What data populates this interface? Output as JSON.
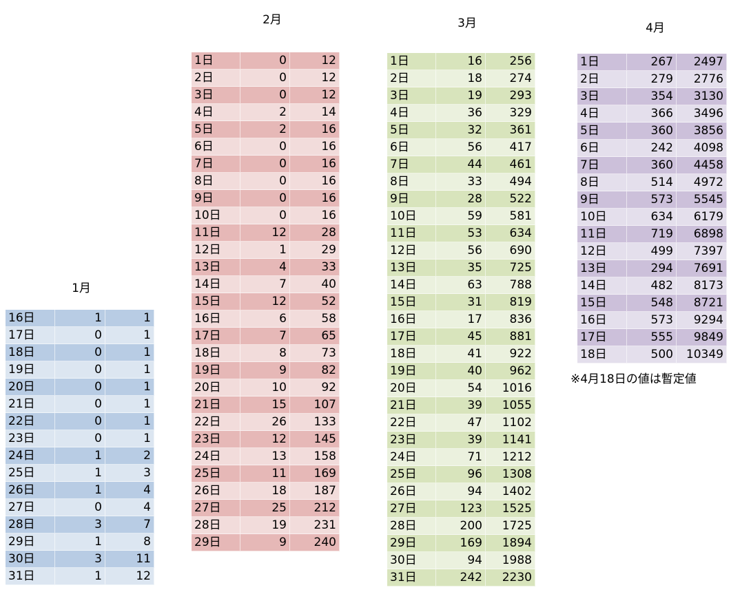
{
  "tables": [
    {
      "title": "1月",
      "rows": [
        [
          "16日",
          1,
          1
        ],
        [
          "17日",
          0,
          1
        ],
        [
          "18日",
          0,
          1
        ],
        [
          "19日",
          0,
          1
        ],
        [
          "20日",
          0,
          1
        ],
        [
          "21日",
          0,
          1
        ],
        [
          "22日",
          0,
          1
        ],
        [
          "23日",
          0,
          1
        ],
        [
          "24日",
          1,
          2
        ],
        [
          "25日",
          1,
          3
        ],
        [
          "26日",
          1,
          4
        ],
        [
          "27日",
          0,
          4
        ],
        [
          "28日",
          3,
          7
        ],
        [
          "29日",
          1,
          8
        ],
        [
          "30日",
          3,
          11
        ],
        [
          "31日",
          1,
          12
        ]
      ]
    },
    {
      "title": "2月",
      "rows": [
        [
          "1日",
          0,
          12
        ],
        [
          "2日",
          0,
          12
        ],
        [
          "3日",
          0,
          12
        ],
        [
          "4日",
          2,
          14
        ],
        [
          "5日",
          2,
          16
        ],
        [
          "6日",
          0,
          16
        ],
        [
          "7日",
          0,
          16
        ],
        [
          "8日",
          0,
          16
        ],
        [
          "9日",
          0,
          16
        ],
        [
          "10日",
          0,
          16
        ],
        [
          "11日",
          12,
          28
        ],
        [
          "12日",
          1,
          29
        ],
        [
          "13日",
          4,
          33
        ],
        [
          "14日",
          7,
          40
        ],
        [
          "15日",
          12,
          52
        ],
        [
          "16日",
          6,
          58
        ],
        [
          "17日",
          7,
          65
        ],
        [
          "18日",
          8,
          73
        ],
        [
          "19日",
          9,
          82
        ],
        [
          "20日",
          10,
          92
        ],
        [
          "21日",
          15,
          107
        ],
        [
          "22日",
          26,
          133
        ],
        [
          "23日",
          12,
          145
        ],
        [
          "24日",
          13,
          158
        ],
        [
          "25日",
          11,
          169
        ],
        [
          "26日",
          18,
          187
        ],
        [
          "27日",
          25,
          212
        ],
        [
          "28日",
          19,
          231
        ],
        [
          "29日",
          9,
          240
        ]
      ]
    },
    {
      "title": "3月",
      "rows": [
        [
          "1日",
          16,
          256
        ],
        [
          "2日",
          18,
          274
        ],
        [
          "3日",
          19,
          293
        ],
        [
          "4日",
          36,
          329
        ],
        [
          "5日",
          32,
          361
        ],
        [
          "6日",
          56,
          417
        ],
        [
          "7日",
          44,
          461
        ],
        [
          "8日",
          33,
          494
        ],
        [
          "9日",
          28,
          522
        ],
        [
          "10日",
          59,
          581
        ],
        [
          "11日",
          53,
          634
        ],
        [
          "12日",
          56,
          690
        ],
        [
          "13日",
          35,
          725
        ],
        [
          "14日",
          63,
          788
        ],
        [
          "15日",
          31,
          819
        ],
        [
          "16日",
          17,
          836
        ],
        [
          "17日",
          45,
          881
        ],
        [
          "18日",
          41,
          922
        ],
        [
          "19日",
          40,
          962
        ],
        [
          "20日",
          54,
          1016
        ],
        [
          "21日",
          39,
          1055
        ],
        [
          "22日",
          47,
          1102
        ],
        [
          "23日",
          39,
          1141
        ],
        [
          "24日",
          71,
          1212
        ],
        [
          "25日",
          96,
          1308
        ],
        [
          "26日",
          94,
          1402
        ],
        [
          "27日",
          123,
          1525
        ],
        [
          "28日",
          200,
          1725
        ],
        [
          "29日",
          169,
          1894
        ],
        [
          "30日",
          94,
          1988
        ],
        [
          "31日",
          242,
          2230
        ]
      ]
    },
    {
      "title": "4月",
      "rows": [
        [
          "1日",
          267,
          2497
        ],
        [
          "2日",
          279,
          2776
        ],
        [
          "3日",
          354,
          3130
        ],
        [
          "4日",
          366,
          3496
        ],
        [
          "5日",
          360,
          3856
        ],
        [
          "6日",
          242,
          4098
        ],
        [
          "7日",
          360,
          4458
        ],
        [
          "8日",
          514,
          4972
        ],
        [
          "9日",
          573,
          5545
        ],
        [
          "10日",
          634,
          6179
        ],
        [
          "11日",
          719,
          6898
        ],
        [
          "12日",
          499,
          7397
        ],
        [
          "13日",
          294,
          7691
        ],
        [
          "14日",
          482,
          8173
        ],
        [
          "15日",
          548,
          8721
        ],
        [
          "16日",
          573,
          9294
        ],
        [
          "17日",
          555,
          9849
        ],
        [
          "18日",
          500,
          10349
        ]
      ]
    }
  ],
  "note": "※4月18日の値は暫定値"
}
